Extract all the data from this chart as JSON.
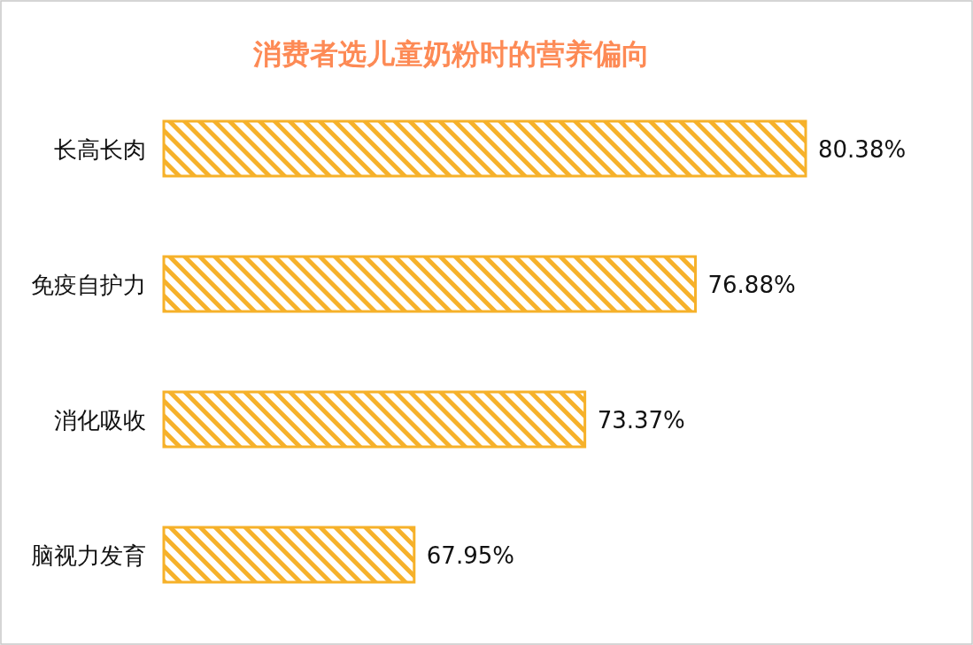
{
  "chart_data": {
    "type": "bar",
    "orientation": "horizontal",
    "title": "消费者选儿童奶粉时的营养偏向",
    "categories": [
      "长高长肉",
      "免疫自护力",
      "消化吸收",
      "脑视力发育"
    ],
    "values": [
      80.38,
      76.88,
      73.37,
      67.95
    ],
    "value_labels": [
      "80.38%",
      "76.88%",
      "73.37%",
      "67.95%"
    ],
    "color": "#f6b12a",
    "xlim": [
      60,
      80.38
    ]
  }
}
